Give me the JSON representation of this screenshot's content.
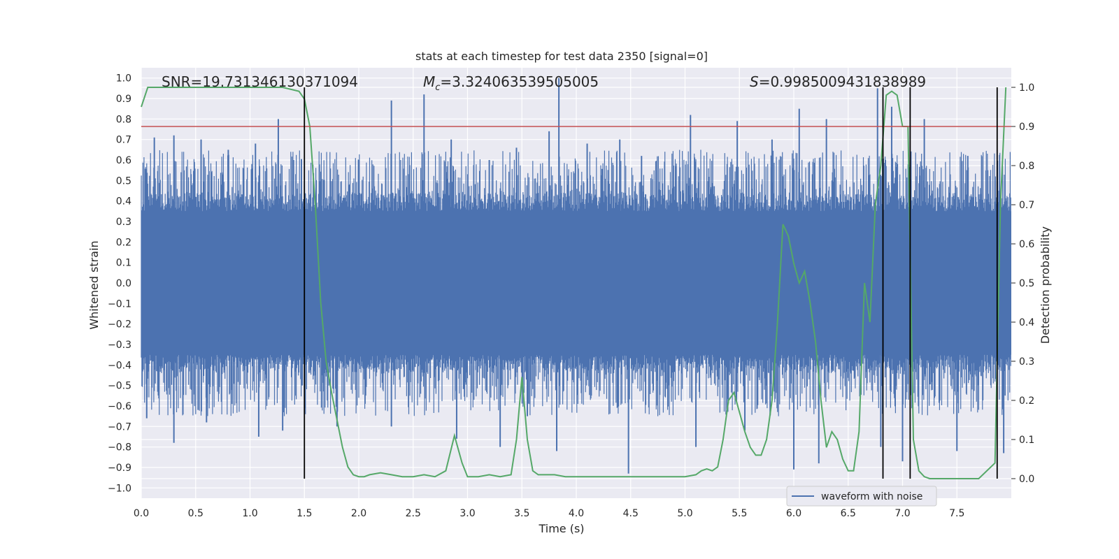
{
  "chart_data": {
    "type": "line",
    "title": "stats at each timestep for test data 2350 [signal=0]",
    "xlabel": "Time (s)",
    "ylabel_left": "Whitened strain",
    "ylabel_right": "Detection probability",
    "xlim": [
      0.0,
      8.0
    ],
    "ylim_left": [
      -1.05,
      1.05
    ],
    "ylim_right": [
      -0.05,
      1.05
    ],
    "x_ticks": [
      "0.0",
      "0.5",
      "1.0",
      "1.5",
      "2.0",
      "2.5",
      "3.0",
      "3.5",
      "4.0",
      "4.5",
      "5.0",
      "5.5",
      "6.0",
      "6.5",
      "7.0",
      "7.5"
    ],
    "y_ticks_left": [
      "−1.0",
      "−0.9",
      "−0.8",
      "−0.7",
      "−0.6",
      "−0.5",
      "−0.4",
      "−0.3",
      "−0.2",
      "−0.1",
      "0.0",
      "0.1",
      "0.2",
      "0.3",
      "0.4",
      "0.5",
      "0.6",
      "0.7",
      "0.8",
      "0.9",
      "1.0"
    ],
    "y_ticks_right": [
      "0.0",
      "0.1",
      "0.2",
      "0.3",
      "0.4",
      "0.5",
      "0.6",
      "0.7",
      "0.8",
      "0.9",
      "1.0"
    ],
    "grid": true,
    "legend_placement": "lower-right",
    "annotations": {
      "snr": "SNR=19.731346130371094",
      "mc_symbol": "M",
      "mc_subscript": "c",
      "mc_value": "=3.324063539505005",
      "s_symbol": "S",
      "s_value": "=0.9985009431838989"
    },
    "series": [
      {
        "name": "waveform with noise",
        "axis": "left",
        "color": "#4c72b0",
        "description_noise_band": [
          -0.35,
          0.35
        ],
        "peaks_positive": [
          [
            0.05,
            0.5
          ],
          [
            0.12,
            0.71
          ],
          [
            0.3,
            0.72
          ],
          [
            0.55,
            0.7
          ],
          [
            0.8,
            0.65
          ],
          [
            1.05,
            0.68
          ],
          [
            1.26,
            0.8
          ],
          [
            1.4,
            0.6
          ],
          [
            2.0,
            0.6
          ],
          [
            2.3,
            0.89
          ],
          [
            2.6,
            0.92
          ],
          [
            2.85,
            0.7
          ],
          [
            3.2,
            0.6
          ],
          [
            3.45,
            0.66
          ],
          [
            3.75,
            0.74
          ],
          [
            3.84,
            1.0
          ],
          [
            4.1,
            0.68
          ],
          [
            4.4,
            0.7
          ],
          [
            4.6,
            0.62
          ],
          [
            5.05,
            0.82
          ],
          [
            5.48,
            0.79
          ],
          [
            5.8,
            0.7
          ],
          [
            6.05,
            0.85
          ],
          [
            6.3,
            0.8
          ],
          [
            6.77,
            0.95
          ],
          [
            6.9,
            0.86
          ],
          [
            7.2,
            0.8
          ],
          [
            7.6,
            0.62
          ]
        ],
        "peaks_negative": [
          [
            0.05,
            -0.66
          ],
          [
            0.3,
            -0.78
          ],
          [
            0.6,
            -0.68
          ],
          [
            1.08,
            -0.75
          ],
          [
            1.3,
            -0.72
          ],
          [
            1.48,
            -0.5
          ],
          [
            1.8,
            -0.7
          ],
          [
            2.3,
            -0.7
          ],
          [
            2.9,
            -0.76
          ],
          [
            3.3,
            -0.8
          ],
          [
            3.55,
            -0.65
          ],
          [
            3.82,
            -0.82
          ],
          [
            4.48,
            -0.93
          ],
          [
            5.1,
            -0.8
          ],
          [
            5.55,
            -0.72
          ],
          [
            6.0,
            -0.91
          ],
          [
            6.23,
            -0.88
          ],
          [
            6.8,
            -0.8
          ],
          [
            7.0,
            -0.87
          ],
          [
            7.5,
            -0.82
          ],
          [
            7.93,
            -0.83
          ]
        ]
      },
      {
        "name": "",
        "axis": "right",
        "color": "#55a868",
        "x": [
          0.0,
          0.06,
          0.2,
          0.5,
          1.0,
          1.3,
          1.45,
          1.5,
          1.55,
          1.6,
          1.65,
          1.7,
          1.75,
          1.8,
          1.85,
          1.9,
          1.95,
          2.0,
          2.05,
          2.1,
          2.2,
          2.3,
          2.4,
          2.5,
          2.6,
          2.7,
          2.8,
          2.88,
          2.95,
          3.0,
          3.1,
          3.2,
          3.3,
          3.4,
          3.45,
          3.5,
          3.55,
          3.6,
          3.65,
          3.7,
          3.8,
          3.9,
          4.0,
          4.5,
          5.0,
          5.1,
          5.15,
          5.2,
          5.25,
          5.3,
          5.35,
          5.4,
          5.45,
          5.5,
          5.55,
          5.6,
          5.65,
          5.7,
          5.75,
          5.8,
          5.85,
          5.9,
          5.95,
          6.0,
          6.05,
          6.1,
          6.15,
          6.2,
          6.25,
          6.3,
          6.35,
          6.4,
          6.45,
          6.5,
          6.55,
          6.6,
          6.65,
          6.7,
          6.75,
          6.8,
          6.85,
          6.9,
          6.95,
          7.0,
          7.05,
          7.1,
          7.15,
          7.2,
          7.25,
          7.3,
          7.5,
          7.7,
          7.85,
          7.9,
          7.95
        ],
        "y": [
          0.95,
          1.0,
          1.0,
          1.0,
          1.0,
          1.0,
          0.99,
          0.97,
          0.9,
          0.7,
          0.45,
          0.3,
          0.22,
          0.15,
          0.08,
          0.03,
          0.01,
          0.005,
          0.005,
          0.01,
          0.015,
          0.01,
          0.005,
          0.005,
          0.01,
          0.005,
          0.02,
          0.11,
          0.04,
          0.005,
          0.005,
          0.01,
          0.005,
          0.01,
          0.1,
          0.26,
          0.1,
          0.02,
          0.01,
          0.01,
          0.01,
          0.005,
          0.005,
          0.005,
          0.005,
          0.01,
          0.02,
          0.025,
          0.02,
          0.03,
          0.1,
          0.2,
          0.22,
          0.17,
          0.12,
          0.08,
          0.06,
          0.06,
          0.1,
          0.2,
          0.4,
          0.65,
          0.62,
          0.55,
          0.5,
          0.53,
          0.45,
          0.35,
          0.2,
          0.08,
          0.12,
          0.1,
          0.05,
          0.02,
          0.02,
          0.12,
          0.5,
          0.4,
          0.7,
          0.8,
          0.98,
          0.99,
          0.98,
          0.9,
          0.9,
          0.1,
          0.02,
          0.005,
          0.0,
          0.0,
          0.0,
          0.0,
          0.04,
          0.7,
          1.0
        ]
      },
      {
        "name": "",
        "axis": "right",
        "type": "hline",
        "color": "#c44e52",
        "y": 0.9
      },
      {
        "name": "",
        "type": "vlines",
        "color": "#000000",
        "x": [
          1.5,
          6.82,
          7.07,
          7.87
        ],
        "y_range_right": [
          0.0,
          1.0
        ]
      }
    ]
  }
}
